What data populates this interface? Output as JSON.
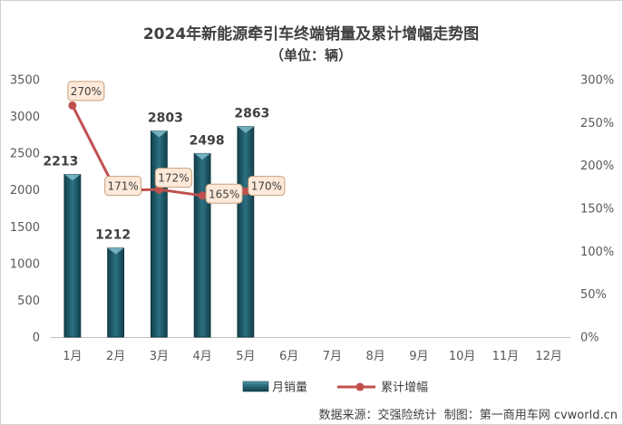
{
  "chart_data": {
    "type": "bar",
    "title": "2024年新能源牵引车终端销量及累计增幅走势图",
    "subtitle": "（单位：辆）",
    "categories": [
      "1月",
      "2月",
      "3月",
      "4月",
      "5月",
      "6月",
      "7月",
      "8月",
      "9月",
      "10月",
      "11月",
      "12月"
    ],
    "series": [
      {
        "name": "月销量",
        "type": "bar",
        "axis": "left",
        "values": [
          2213,
          1212,
          2803,
          2498,
          2863,
          null,
          null,
          null,
          null,
          null,
          null,
          null
        ]
      },
      {
        "name": "累计增幅",
        "type": "line",
        "axis": "right",
        "values": [
          270,
          171,
          172,
          165,
          170,
          null,
          null,
          null,
          null,
          null,
          null,
          null
        ],
        "data_labels": [
          "270%",
          "171%",
          "172%",
          "165%",
          "170%"
        ]
      }
    ],
    "y_left": {
      "range": [
        0,
        3500
      ],
      "ticks": [
        0,
        500,
        1000,
        1500,
        2000,
        2500,
        3000,
        3500
      ]
    },
    "y_right": {
      "range": [
        0,
        300
      ],
      "ticks": [
        0,
        50,
        100,
        150,
        200,
        250,
        300
      ],
      "tick_labels": [
        "0%",
        "50%",
        "100%",
        "150%",
        "200%",
        "250%",
        "300%"
      ]
    },
    "grid": false,
    "legend": "bottom",
    "colors": {
      "bar": "#2c7182",
      "line": "#c0504d"
    }
  },
  "footer": {
    "source": "数据来源：交强险统计  制图：第一商用车网 cvworld.cn"
  }
}
